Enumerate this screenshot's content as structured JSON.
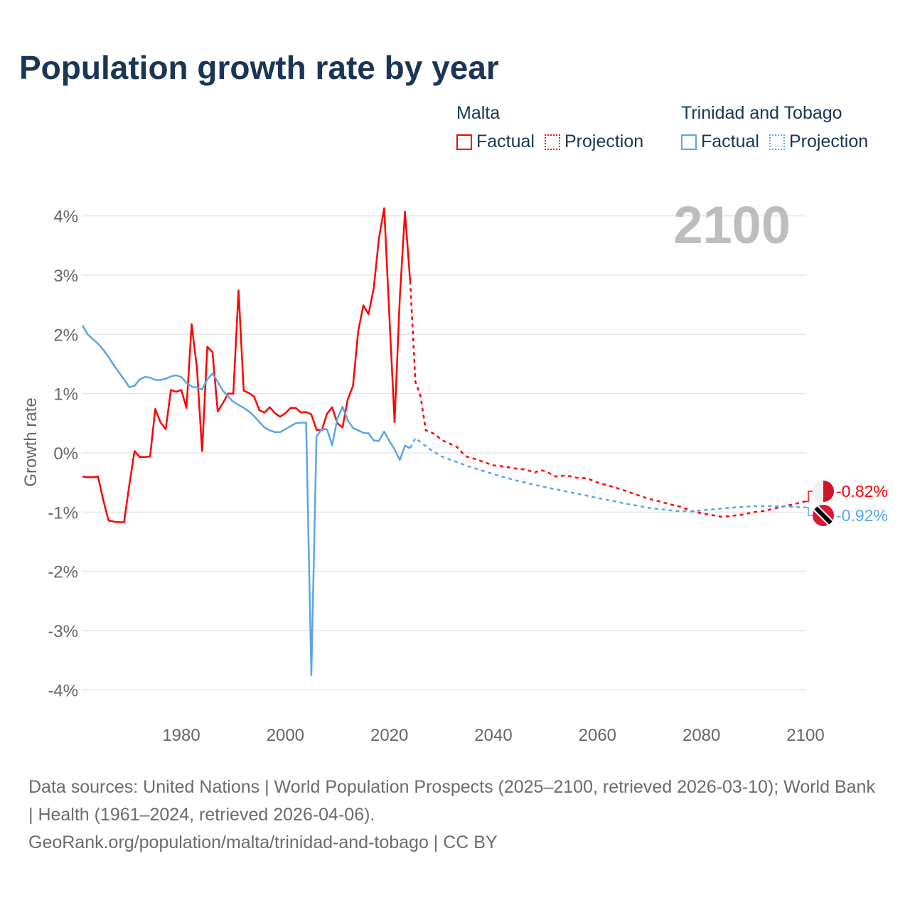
{
  "title": "Population growth rate by year",
  "legend": {
    "groups": [
      {
        "name": "Malta",
        "color": "#ff0000",
        "factual": "Factual",
        "projection": "Projection"
      },
      {
        "name": "Trinidad and Tobago",
        "color": "#5aa5e8",
        "factual": "Factual",
        "projection": "Projection"
      }
    ]
  },
  "year_badge": "2100",
  "footer": {
    "sources": "Data sources: United Nations | World Population Prospects (2025–2100, retrieved 2026-03-10); World Bank | Health (1961–2024, retrieved 2026-04-06).",
    "link": "GeoRank.org/population/malta/trinidad-and-tobago | CC BY"
  },
  "chart_data": {
    "type": "line",
    "title": "Population growth rate by year",
    "xlabel": "",
    "ylabel": "Growth rate",
    "xlim": [
      1961,
      2100
    ],
    "ylim": [
      -4.3,
      4.3
    ],
    "xticks": [
      1980,
      2000,
      2020,
      2040,
      2060,
      2080,
      2100
    ],
    "xtick_labels": [
      "1980",
      "2000",
      "2020",
      "2040",
      "2060",
      "2080",
      "2100"
    ],
    "yticks": [
      4,
      3,
      2,
      1,
      0,
      -1,
      -2,
      -3,
      -4
    ],
    "ytick_labels": [
      "4%",
      "3%",
      "2%",
      "1%",
      "0%",
      "-1%",
      "-2%",
      "-3%",
      "-4%"
    ],
    "grid": true,
    "legend_position": "top-right",
    "series": [
      {
        "name": "Malta",
        "kind": "Factual",
        "color": "#ff0000",
        "x": [
          1961,
          1962,
          1963,
          1964,
          1965,
          1966,
          1967,
          1968,
          1969,
          1970,
          1971,
          1972,
          1973,
          1974,
          1975,
          1976,
          1977,
          1978,
          1979,
          1980,
          1981,
          1982,
          1983,
          1984,
          1985,
          1986,
          1987,
          1988,
          1989,
          1990,
          1991,
          1992,
          1993,
          1994,
          1995,
          1996,
          1997,
          1998,
          1999,
          2000,
          2001,
          2002,
          2003,
          2004,
          2005,
          2006,
          2007,
          2008,
          2009,
          2010,
          2011,
          2012,
          2013,
          2014,
          2015,
          2016,
          2017,
          2018,
          2019,
          2020,
          2021,
          2022,
          2023,
          2024
        ],
        "y": [
          -0.4,
          -0.41,
          -0.41,
          -0.4,
          -0.8,
          -1.14,
          -1.16,
          -1.17,
          -1.17,
          -0.55,
          0.03,
          -0.07,
          -0.07,
          -0.06,
          0.74,
          0.52,
          0.4,
          1.06,
          1.03,
          1.06,
          0.76,
          2.17,
          1.43,
          0.03,
          1.79,
          1.7,
          0.7,
          0.84,
          1.0,
          1.0,
          2.74,
          1.05,
          1.01,
          0.95,
          0.72,
          0.68,
          0.77,
          0.67,
          0.61,
          0.67,
          0.76,
          0.76,
          0.68,
          0.69,
          0.65,
          0.39,
          0.38,
          0.66,
          0.77,
          0.5,
          0.43,
          0.9,
          1.13,
          2.05,
          2.49,
          2.34,
          2.78,
          3.62,
          4.13,
          2.3,
          0.52,
          2.6,
          4.07,
          2.9
        ]
      },
      {
        "name": "Malta",
        "kind": "Projection",
        "color": "#ff0000",
        "x": [
          2024,
          2025,
          2026,
          2027,
          2028,
          2029,
          2030,
          2031,
          2032,
          2033,
          2034,
          2035,
          2036,
          2037,
          2038,
          2040,
          2042,
          2044,
          2046,
          2048,
          2049,
          2050,
          2052,
          2054,
          2056,
          2058,
          2060,
          2062,
          2064,
          2066,
          2068,
          2070,
          2072,
          2074,
          2076,
          2078,
          2080,
          2082,
          2084,
          2086,
          2088,
          2090,
          2092,
          2094,
          2096,
          2098,
          2100
        ],
        "y": [
          2.9,
          1.2,
          0.95,
          0.38,
          0.35,
          0.3,
          0.22,
          0.18,
          0.14,
          0.1,
          0.0,
          -0.07,
          -0.09,
          -0.12,
          -0.15,
          -0.21,
          -0.23,
          -0.26,
          -0.28,
          -0.33,
          -0.29,
          -0.31,
          -0.4,
          -0.38,
          -0.42,
          -0.43,
          -0.5,
          -0.55,
          -0.6,
          -0.66,
          -0.72,
          -0.78,
          -0.82,
          -0.87,
          -0.91,
          -0.98,
          -1.02,
          -1.05,
          -1.08,
          -1.06,
          -1.04,
          -1.0,
          -0.98,
          -0.94,
          -0.9,
          -0.86,
          -0.82
        ]
      },
      {
        "name": "Trinidad and Tobago",
        "kind": "Factual",
        "color": "#5aa5e8",
        "x": [
          1961,
          1962,
          1963,
          1964,
          1965,
          1966,
          1967,
          1968,
          1969,
          1970,
          1971,
          1972,
          1973,
          1974,
          1975,
          1976,
          1977,
          1978,
          1979,
          1980,
          1981,
          1982,
          1983,
          1984,
          1985,
          1986,
          1987,
          1988,
          1989,
          1990,
          1991,
          1992,
          1993,
          1994,
          1995,
          1996,
          1997,
          1998,
          1999,
          2000,
          2001,
          2002,
          2003,
          2004,
          2005,
          2006,
          2007,
          2008,
          2009,
          2010,
          2011,
          2012,
          2013,
          2014,
          2015,
          2016,
          2017,
          2018,
          2019,
          2020,
          2021,
          2022,
          2023,
          2024
        ],
        "y": [
          2.15,
          2.0,
          1.92,
          1.84,
          1.74,
          1.62,
          1.48,
          1.36,
          1.24,
          1.11,
          1.13,
          1.24,
          1.28,
          1.27,
          1.23,
          1.23,
          1.25,
          1.29,
          1.31,
          1.28,
          1.18,
          1.12,
          1.1,
          1.07,
          1.24,
          1.34,
          1.2,
          1.05,
          0.95,
          0.86,
          0.81,
          0.76,
          0.7,
          0.62,
          0.52,
          0.43,
          0.38,
          0.35,
          0.35,
          0.4,
          0.45,
          0.5,
          0.51,
          0.51,
          -3.75,
          0.28,
          0.4,
          0.4,
          0.13,
          0.58,
          0.78,
          0.55,
          0.42,
          0.38,
          0.34,
          0.33,
          0.21,
          0.2,
          0.36,
          0.2,
          0.06,
          -0.12,
          0.12,
          0.08
        ]
      },
      {
        "name": "Trinidad and Tobago",
        "kind": "Projection",
        "color": "#5aa5e8",
        "x": [
          2024,
          2025,
          2026,
          2028,
          2030,
          2035,
          2040,
          2045,
          2050,
          2055,
          2060,
          2065,
          2070,
          2075,
          2078,
          2080,
          2085,
          2090,
          2095,
          2100
        ],
        "y": [
          0.08,
          0.25,
          0.18,
          0.05,
          -0.06,
          -0.22,
          -0.36,
          -0.48,
          -0.58,
          -0.67,
          -0.76,
          -0.85,
          -0.93,
          -0.98,
          -0.99,
          -0.97,
          -0.93,
          -0.9,
          -0.9,
          -0.92
        ]
      }
    ],
    "end_labels": [
      {
        "series": "Malta",
        "value": -0.82,
        "text": "-0.82%",
        "color": "#ff0000",
        "flag": "malta-flag"
      },
      {
        "series": "Trinidad and Tobago",
        "value": -0.92,
        "text": "-0.92%",
        "color": "#5aa5e8",
        "flag": "trinidad-flag"
      }
    ]
  }
}
